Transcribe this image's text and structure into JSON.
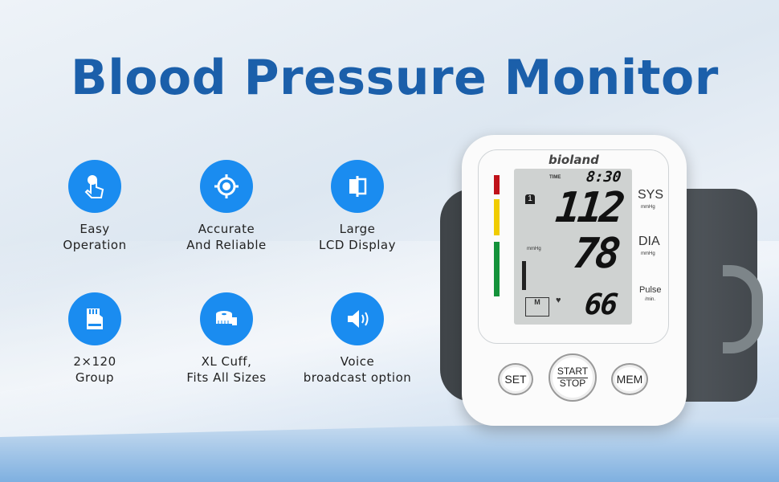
{
  "title": "Blood Pressure Monitor",
  "features": [
    {
      "icon": "touch-icon",
      "line1": "Easy",
      "line2": "Operation"
    },
    {
      "icon": "target-icon",
      "line1": "Accurate",
      "line2": "And Reliable"
    },
    {
      "icon": "display-icon",
      "line1": "Large",
      "line2": "LCD Display"
    },
    {
      "icon": "memory-card-icon",
      "line1": "2×120",
      "line2": "Group"
    },
    {
      "icon": "tape-measure-icon",
      "line1": "XL Cuff,",
      "line2": "Fits All Sizes"
    },
    {
      "icon": "speaker-icon",
      "line1": "Voice",
      "line2": "broadcast option"
    }
  ],
  "device": {
    "brand": "bioland",
    "time_label": "TIME",
    "time": "8:30",
    "sys": "112",
    "dia": "78",
    "pulse": "66",
    "sys_label": "SYS",
    "dia_label": "DIA",
    "pulse_label": "Pulse",
    "unit": "mmHg",
    "pulse_unit": "/min.",
    "lcd_unit": "mmHg",
    "memory_label": "M",
    "user": "1",
    "buttons": {
      "set": "SET",
      "start": "START",
      "stop": "STOP",
      "mem": "MEM"
    }
  },
  "colors": {
    "title": "#1b5faa",
    "icon_bg": "#1a8cf0",
    "bar_red": "#c0121a",
    "bar_yellow": "#f0cc00",
    "bar_green": "#14923a"
  }
}
